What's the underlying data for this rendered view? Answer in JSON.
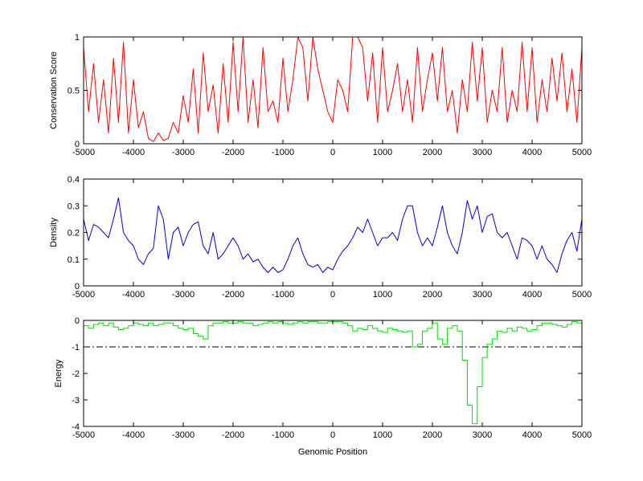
{
  "chart_data": [
    {
      "type": "line",
      "xlabel": "",
      "ylabel": "Conservation Score",
      "xlim": [
        -5000,
        5000
      ],
      "ylim": [
        0,
        1
      ],
      "xticks": [
        -5000,
        -4000,
        -3000,
        -2000,
        -1000,
        0,
        1000,
        2000,
        3000,
        4000,
        5000
      ],
      "yticks": [
        0,
        0.5,
        1
      ],
      "ytick_labels": [
        "0",
        "0.5",
        "1"
      ],
      "grid": false,
      "series": [
        {
          "color": "#ff0000",
          "x": [
            -5000,
            -4900,
            -4800,
            -4700,
            -4600,
            -4500,
            -4400,
            -4300,
            -4200,
            -4100,
            -4000,
            -3900,
            -3800,
            -3700,
            -3600,
            -3500,
            -3400,
            -3300,
            -3200,
            -3100,
            -3000,
            -2900,
            -2800,
            -2700,
            -2600,
            -2500,
            -2400,
            -2300,
            -2200,
            -2100,
            -2000,
            -1900,
            -1800,
            -1700,
            -1600,
            -1500,
            -1400,
            -1300,
            -1200,
            -1100,
            -1000,
            -900,
            -800,
            -700,
            -600,
            -500,
            -400,
            -300,
            -200,
            -100,
            0,
            100,
            200,
            300,
            400,
            500,
            600,
            700,
            800,
            900,
            1000,
            1100,
            1200,
            1300,
            1400,
            1500,
            1600,
            1700,
            1800,
            1900,
            2000,
            2100,
            2200,
            2300,
            2400,
            2500,
            2600,
            2700,
            2800,
            2900,
            3000,
            3100,
            3200,
            3300,
            3400,
            3500,
            3600,
            3700,
            3800,
            3900,
            4000,
            4100,
            4200,
            4300,
            4400,
            4500,
            4600,
            4700,
            4800,
            4900,
            5000
          ],
          "values": [
            0.9,
            0.3,
            0.75,
            0.2,
            0.6,
            0.1,
            0.8,
            0.2,
            0.95,
            0.1,
            0.6,
            0.15,
            0.3,
            0.05,
            0.02,
            0.1,
            0.03,
            0.05,
            0.2,
            0.1,
            0.45,
            0.2,
            0.7,
            0.1,
            0.85,
            0.3,
            0.55,
            0.1,
            0.75,
            0.2,
            0.95,
            0.3,
            1.0,
            0.2,
            0.6,
            0.15,
            0.9,
            0.3,
            0.4,
            0.2,
            0.8,
            0.3,
            0.6,
            1.0,
            0.9,
            0.4,
            1.0,
            0.7,
            0.5,
            0.3,
            0.2,
            0.6,
            0.5,
            0.3,
            1.0,
            1.0,
            0.9,
            0.4,
            0.85,
            0.2,
            0.9,
            0.3,
            0.5,
            0.75,
            0.3,
            0.6,
            0.2,
            0.9,
            0.3,
            0.6,
            0.85,
            0.4,
            0.9,
            0.3,
            0.5,
            0.1,
            0.6,
            0.3,
            0.95,
            0.4,
            0.9,
            0.2,
            0.5,
            0.3,
            0.9,
            0.2,
            0.5,
            0.3,
            0.95,
            0.3,
            0.9,
            0.2,
            0.6,
            0.3,
            0.8,
            0.4,
            0.85,
            0.3,
            0.7,
            0.2,
            0.9
          ]
        }
      ]
    },
    {
      "type": "line",
      "xlabel": "",
      "ylabel": "Density",
      "xlim": [
        -5000,
        5000
      ],
      "ylim": [
        0,
        0.4
      ],
      "xticks": [
        -5000,
        -4000,
        -3000,
        -2000,
        -1000,
        0,
        1000,
        2000,
        3000,
        4000,
        5000
      ],
      "yticks": [
        0,
        0.1,
        0.2,
        0.3,
        0.4
      ],
      "ytick_labels": [
        "0",
        "0.1",
        "0.2",
        "0.3",
        "0.4"
      ],
      "grid": false,
      "series": [
        {
          "color": "#0000cc",
          "x": [
            -5000,
            -4900,
            -4800,
            -4700,
            -4600,
            -4500,
            -4400,
            -4300,
            -4200,
            -4100,
            -4000,
            -3900,
            -3800,
            -3700,
            -3600,
            -3500,
            -3400,
            -3300,
            -3200,
            -3100,
            -3000,
            -2900,
            -2800,
            -2700,
            -2600,
            -2500,
            -2400,
            -2300,
            -2200,
            -2100,
            -2000,
            -1900,
            -1800,
            -1700,
            -1600,
            -1500,
            -1400,
            -1300,
            -1200,
            -1100,
            -1000,
            -900,
            -800,
            -700,
            -600,
            -500,
            -400,
            -300,
            -200,
            -100,
            0,
            100,
            200,
            300,
            400,
            500,
            600,
            700,
            800,
            900,
            1000,
            1100,
            1200,
            1300,
            1400,
            1500,
            1600,
            1700,
            1800,
            1900,
            2000,
            2100,
            2200,
            2300,
            2400,
            2500,
            2600,
            2700,
            2800,
            2900,
            3000,
            3100,
            3200,
            3300,
            3400,
            3500,
            3600,
            3700,
            3800,
            3900,
            4000,
            4100,
            4200,
            4300,
            4400,
            4500,
            4600,
            4700,
            4800,
            4900,
            5000
          ],
          "values": [
            0.25,
            0.17,
            0.23,
            0.22,
            0.2,
            0.18,
            0.25,
            0.33,
            0.2,
            0.17,
            0.15,
            0.1,
            0.08,
            0.12,
            0.14,
            0.3,
            0.25,
            0.1,
            0.2,
            0.22,
            0.15,
            0.2,
            0.23,
            0.24,
            0.15,
            0.12,
            0.2,
            0.1,
            0.12,
            0.15,
            0.18,
            0.15,
            0.1,
            0.12,
            0.09,
            0.1,
            0.07,
            0.05,
            0.07,
            0.05,
            0.06,
            0.1,
            0.15,
            0.18,
            0.12,
            0.08,
            0.07,
            0.08,
            0.05,
            0.07,
            0.06,
            0.1,
            0.13,
            0.15,
            0.18,
            0.22,
            0.2,
            0.25,
            0.2,
            0.15,
            0.18,
            0.18,
            0.2,
            0.17,
            0.25,
            0.3,
            0.3,
            0.2,
            0.15,
            0.18,
            0.15,
            0.22,
            0.3,
            0.2,
            0.15,
            0.12,
            0.2,
            0.32,
            0.25,
            0.3,
            0.2,
            0.26,
            0.27,
            0.2,
            0.18,
            0.2,
            0.15,
            0.1,
            0.18,
            0.17,
            0.15,
            0.1,
            0.15,
            0.1,
            0.08,
            0.05,
            0.12,
            0.17,
            0.2,
            0.13,
            0.25
          ]
        }
      ]
    },
    {
      "type": "line",
      "xlabel": "Genomic Position",
      "ylabel": "Energy",
      "xlim": [
        -5000,
        5000
      ],
      "ylim": [
        -4,
        0
      ],
      "xticks": [
        -5000,
        -4000,
        -3000,
        -2000,
        -1000,
        0,
        1000,
        2000,
        3000,
        4000,
        5000
      ],
      "yticks": [
        -4,
        -3,
        -2,
        -1,
        0
      ],
      "ytick_labels": [
        "-4",
        "-3",
        "-2",
        "-1",
        "0"
      ],
      "grid": false,
      "reference_line": {
        "y": -1,
        "style": "dash-dot",
        "color": "#000000"
      },
      "series": [
        {
          "color": "#00dd00",
          "x": [
            -5000,
            -4900,
            -4800,
            -4700,
            -4600,
            -4500,
            -4400,
            -4300,
            -4200,
            -4100,
            -4000,
            -3900,
            -3800,
            -3700,
            -3600,
            -3500,
            -3400,
            -3300,
            -3200,
            -3100,
            -3000,
            -2900,
            -2800,
            -2700,
            -2600,
            -2500,
            -2400,
            -2300,
            -2200,
            -2100,
            -2000,
            -1900,
            -1800,
            -1700,
            -1600,
            -1500,
            -1400,
            -1300,
            -1200,
            -1100,
            -1000,
            -900,
            -800,
            -700,
            -600,
            -500,
            -400,
            -300,
            -200,
            -100,
            0,
            100,
            200,
            300,
            400,
            500,
            600,
            700,
            800,
            900,
            1000,
            1100,
            1200,
            1300,
            1400,
            1500,
            1600,
            1700,
            1800,
            1900,
            2000,
            2100,
            2200,
            2300,
            2400,
            2500,
            2600,
            2700,
            2800,
            2900,
            3000,
            3100,
            3200,
            3300,
            3400,
            3500,
            3600,
            3700,
            3800,
            3900,
            4000,
            4100,
            4200,
            4300,
            4400,
            4500,
            4600,
            4700,
            4800,
            4900,
            5000
          ],
          "values": [
            -0.2,
            -0.3,
            -0.15,
            -0.1,
            -0.2,
            -0.1,
            -0.25,
            -0.35,
            -0.3,
            -0.2,
            -0.1,
            -0.15,
            -0.2,
            -0.1,
            -0.2,
            -0.15,
            -0.1,
            -0.1,
            -0.2,
            -0.3,
            -0.35,
            -0.3,
            -0.5,
            -0.6,
            -0.7,
            -0.2,
            -0.1,
            -0.1,
            -0.05,
            -0.1,
            -0.1,
            -0.05,
            -0.1,
            -0.1,
            -0.2,
            -0.15,
            -0.1,
            -0.05,
            -0.1,
            -0.05,
            -0.1,
            -0.15,
            -0.1,
            -0.05,
            -0.1,
            -0.05,
            -0.05,
            -0.1,
            -0.1,
            -0.05,
            -0.05,
            -0.05,
            -0.1,
            -0.2,
            -0.4,
            -0.3,
            -0.35,
            -0.2,
            -0.3,
            -0.4,
            -0.45,
            -0.3,
            -0.35,
            -0.4,
            -0.45,
            -0.4,
            -1.0,
            -0.9,
            -0.4,
            -0.3,
            -0.1,
            -0.7,
            -0.9,
            -0.3,
            -0.2,
            -0.4,
            -1.5,
            -3.2,
            -3.9,
            -2.5,
            -1.4,
            -0.9,
            -0.7,
            -0.4,
            -0.45,
            -0.3,
            -0.4,
            -0.25,
            -0.3,
            -0.4,
            -0.35,
            -0.2,
            -0.1,
            -0.1,
            -0.15,
            -0.2,
            -0.25,
            -0.15,
            -0.05,
            -0.1,
            -0.1
          ]
        }
      ]
    }
  ]
}
